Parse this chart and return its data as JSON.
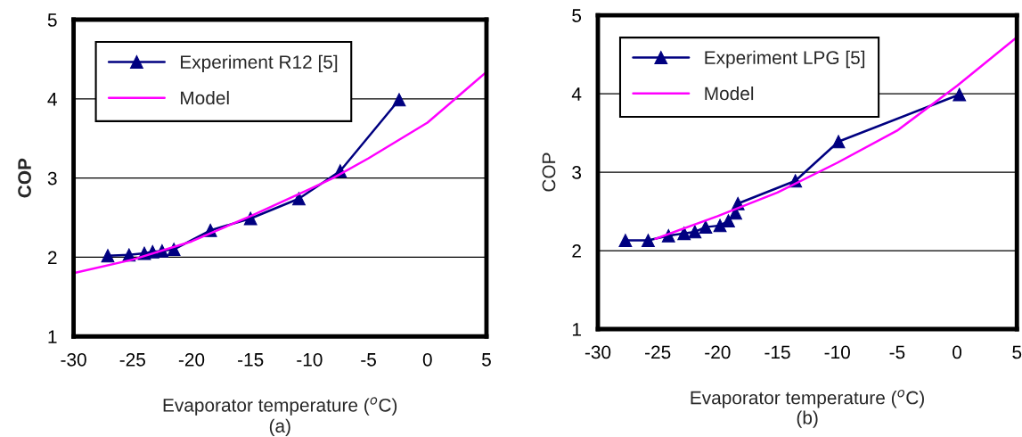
{
  "chart_data": [
    {
      "type": "line",
      "xlabel": "Evaporator temperature ($^{o}$C)",
      "ylabel": "COP",
      "xlim": [
        -30,
        5
      ],
      "xticks": [
        -30,
        -25,
        -20,
        -15,
        -10,
        -5,
        0,
        5
      ],
      "ylim": [
        1,
        5
      ],
      "yticks": [
        1,
        2,
        3,
        4,
        5
      ],
      "grid": "y",
      "legend": "top left",
      "annotations": [
        "(a)"
      ],
      "series": [
        {
          "name": "Experiment R12 [5]",
          "color": "#000080",
          "marker": "triangle",
          "x": [
            -27.1,
            -25.3,
            -24.0,
            -23.3,
            -22.5,
            -21.5,
            -18.4,
            -15.0,
            -10.9,
            -7.4,
            -2.4
          ],
          "values": [
            2.02,
            2.03,
            2.05,
            2.07,
            2.08,
            2.1,
            2.34,
            2.49,
            2.74,
            3.09,
            3.99
          ]
        },
        {
          "name": "Model",
          "color": "#ff00ff",
          "marker": "none",
          "x": [
            -30,
            -25,
            -20,
            -15,
            -10,
            -8,
            -5,
            0,
            5
          ],
          "values": [
            1.8,
            1.97,
            2.2,
            2.52,
            2.86,
            3.0,
            3.25,
            3.7,
            4.34
          ]
        }
      ]
    },
    {
      "type": "line",
      "xlabel": "Evaporator temperature ($^{o}$C)",
      "ylabel": "COP",
      "xlim": [
        -30,
        5
      ],
      "xticks": [
        -30,
        -25,
        -20,
        -15,
        -10,
        -5,
        0,
        5
      ],
      "ylim": [
        1,
        5
      ],
      "yticks": [
        1,
        2,
        3,
        4,
        5
      ],
      "grid": "y",
      "legend": "top left",
      "annotations": [
        "(b)"
      ],
      "series": [
        {
          "name": "Experiment LPG [5]",
          "color": "#000080",
          "marker": "triangle",
          "x": [
            -27.7,
            -25.8,
            -24.1,
            -22.8,
            -21.9,
            -21.0,
            -19.8,
            -19.1,
            -18.5,
            -18.3,
            -13.5,
            -9.9,
            0.2
          ],
          "values": [
            2.13,
            2.13,
            2.19,
            2.22,
            2.24,
            2.3,
            2.32,
            2.38,
            2.48,
            2.6,
            2.89,
            3.39,
            3.99
          ]
        },
        {
          "name": "Model",
          "color": "#ff00ff",
          "marker": "none",
          "x": [
            -25.2,
            -20,
            -15,
            -10,
            -5,
            0,
            5
          ],
          "values": [
            2.15,
            2.44,
            2.74,
            3.12,
            3.53,
            4.1,
            4.72
          ]
        }
      ]
    }
  ]
}
